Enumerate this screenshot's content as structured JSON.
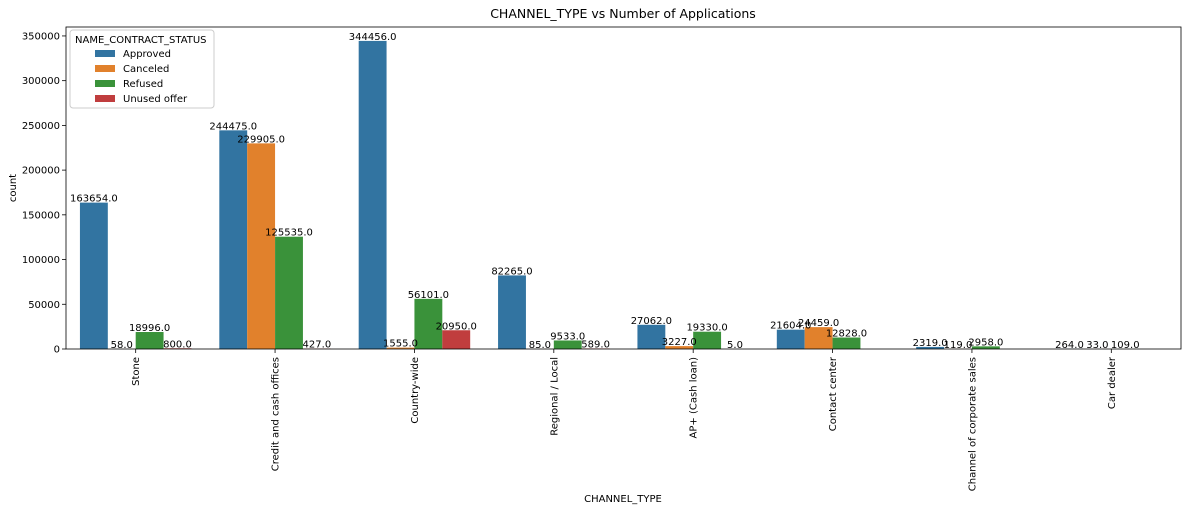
{
  "chart_data": {
    "type": "bar",
    "title": "CHANNEL_TYPE vs Number of Applications",
    "xlabel": "CHANNEL_TYPE",
    "ylabel": "count",
    "ylim": [
      0,
      360000
    ],
    "yticks": [
      0,
      50000,
      100000,
      150000,
      200000,
      250000,
      300000,
      350000
    ],
    "grid": false,
    "legend_position": "top-left",
    "legend_title": "NAME_CONTRACT_STATUS",
    "categories": [
      "Stone",
      "Credit and cash offices",
      "Country-wide",
      "Regional / Local",
      "AP+ (Cash loan)",
      "Contact center",
      "Channel of corporate sales",
      "Car dealer"
    ],
    "series": [
      {
        "name": "Approved",
        "color": "#3274a1",
        "values": [
          163654,
          244475,
          344456,
          82265,
          27062,
          21604,
          2319,
          264
        ],
        "labels": [
          "163654.0",
          "244475.0",
          "344456.0",
          "82265.0",
          "27062.0",
          "21604.0",
          "2319.0",
          "264.0"
        ]
      },
      {
        "name": "Canceled",
        "color": "#e1812c",
        "values": [
          58,
          229905,
          1555,
          85,
          3227,
          24459,
          119,
          33
        ],
        "labels": [
          "58.0",
          "229905.0",
          "1555.0",
          "85.0",
          "3227.0",
          "24459.0",
          "119.0",
          "33.0"
        ]
      },
      {
        "name": "Refused",
        "color": "#3a923a",
        "values": [
          18996,
          125535,
          56101,
          9533,
          19330,
          12828,
          2958,
          109
        ],
        "labels": [
          "18996.0",
          "125535.0",
          "56101.0",
          "9533.0",
          "19330.0",
          "12828.0",
          "2958.0",
          "109.0"
        ]
      },
      {
        "name": "Unused offer",
        "color": "#c03d3e",
        "values": [
          800,
          427,
          20950,
          589,
          5,
          null,
          null,
          null
        ],
        "labels": [
          "800.0",
          "427.0",
          "20950.0",
          "589.0",
          "5.0",
          null,
          null,
          null
        ]
      }
    ]
  }
}
